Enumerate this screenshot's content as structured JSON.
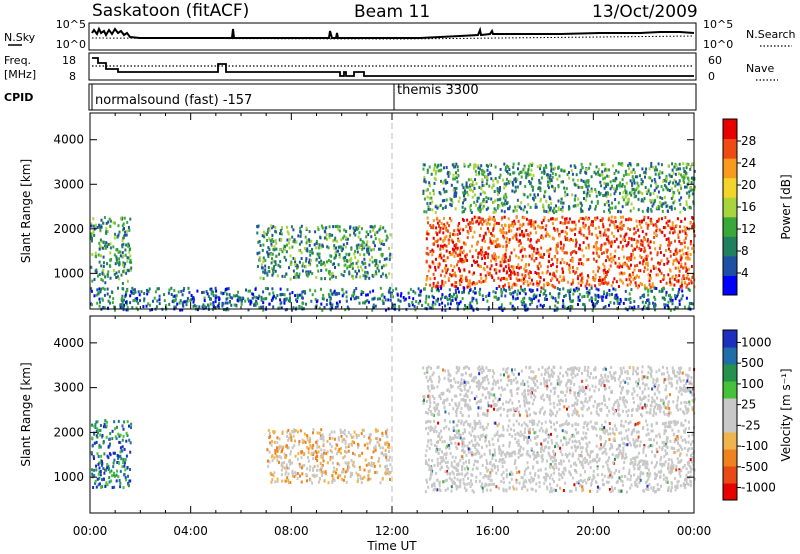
{
  "header": {
    "station": "Saskatoon (fitACF)",
    "beam": "Beam 11",
    "date": "13/Oct/2009"
  },
  "nsky_panel": {
    "left_label": "N.Sky",
    "left_ticks": [
      "10^5",
      "10^0"
    ],
    "right_label": "N.Search",
    "right_ticks": [
      "10^5",
      "10^0"
    ]
  },
  "freq_panel": {
    "left_label_1": "Freq.",
    "left_label_2": "[MHz]",
    "left_ticks": [
      "18",
      "8"
    ],
    "right_label": "Nave",
    "right_ticks": [
      "60",
      "0"
    ]
  },
  "cpid_panel": {
    "label": "CPID",
    "programs": [
      {
        "name": "normalsound (fast) -157",
        "start_hour": 0
      },
      {
        "name": "themis 3300",
        "start_hour": 12
      }
    ]
  },
  "colors": {
    "power_scale": [
      "#0000ff",
      "#1e4fa6",
      "#1f7f5f",
      "#39a83a",
      "#a8d43c",
      "#f2d42a",
      "#f79a1e",
      "#f04a13",
      "#e60000"
    ],
    "velocity_scale": [
      "#1d2fbf",
      "#1f6ea8",
      "#24924d",
      "#46c23a",
      "#c8c8c8",
      "#c8c8c8",
      "#f0b44e",
      "#f0821e",
      "#e84a16",
      "#e60000"
    ]
  },
  "chart_data": [
    {
      "type": "heatmap",
      "title": "",
      "xlabel": "Time UT",
      "ylabel": "Slant Range [km]",
      "xlim": [
        0,
        24
      ],
      "ylim": [
        200,
        4600
      ],
      "x_tick_labels": [
        "00:00",
        "04:00",
        "08:00",
        "12:00",
        "16:00",
        "20:00",
        "00:00"
      ],
      "y_tick_labels": [
        "1000",
        "2000",
        "3000",
        "4000"
      ],
      "colorbar": {
        "label": "Power [dB]",
        "range": [
          0,
          32
        ],
        "tick_labels": [
          "4",
          "8",
          "12",
          "16",
          "20",
          "24",
          "28"
        ]
      },
      "echo_regions": [
        {
          "t_start": 0.0,
          "t_end": 1.6,
          "r_start": 800,
          "r_end": 2300,
          "value": "4-24 dB"
        },
        {
          "t_start": 6.6,
          "t_end": 11.9,
          "r_start": 900,
          "r_end": 2100,
          "value": "4-16 dB"
        },
        {
          "t_start": 13.3,
          "t_end": 24.0,
          "r_start": 700,
          "r_end": 2300,
          "value": "20-28 dB"
        },
        {
          "t_start": 13.2,
          "t_end": 24.0,
          "r_start": 2400,
          "r_end": 3500,
          "value": "8-24 dB"
        },
        {
          "t_start": 0.0,
          "t_end": 24.0,
          "r_start": 200,
          "r_end": 700,
          "value": "4-16 dB"
        }
      ]
    },
    {
      "type": "heatmap",
      "title": "",
      "xlabel": "Time UT",
      "ylabel": "Slant Range [km]",
      "xlim": [
        0,
        24
      ],
      "ylim": [
        200,
        4600
      ],
      "x_tick_labels": [
        "00:00",
        "04:00",
        "08:00",
        "12:00",
        "16:00",
        "20:00",
        "00:00"
      ],
      "y_tick_labels": [
        "1000",
        "2000",
        "3000",
        "4000"
      ],
      "colorbar": {
        "label": "Velocity [m s⁻¹]",
        "range": [
          -1200,
          1200
        ],
        "tick_labels": [
          "1000",
          "500",
          "100",
          "25",
          "-25",
          "-100",
          "-500",
          "-1000"
        ]
      },
      "echo_regions": [
        {
          "t_start": 0.0,
          "t_end": 1.6,
          "r_start": 800,
          "r_end": 2300,
          "value": "25 to 500 m/s"
        },
        {
          "t_start": 7.0,
          "t_end": 11.9,
          "r_start": 900,
          "r_end": 2100,
          "value": "-25 to -500 m/s"
        },
        {
          "t_start": 13.3,
          "t_end": 24.0,
          "r_start": 700,
          "r_end": 2300,
          "value": "-25 to 25 m/s"
        },
        {
          "t_start": 13.2,
          "t_end": 24.0,
          "r_start": 2400,
          "r_end": 3500,
          "value": "-25 to 25 m/s"
        }
      ]
    }
  ]
}
